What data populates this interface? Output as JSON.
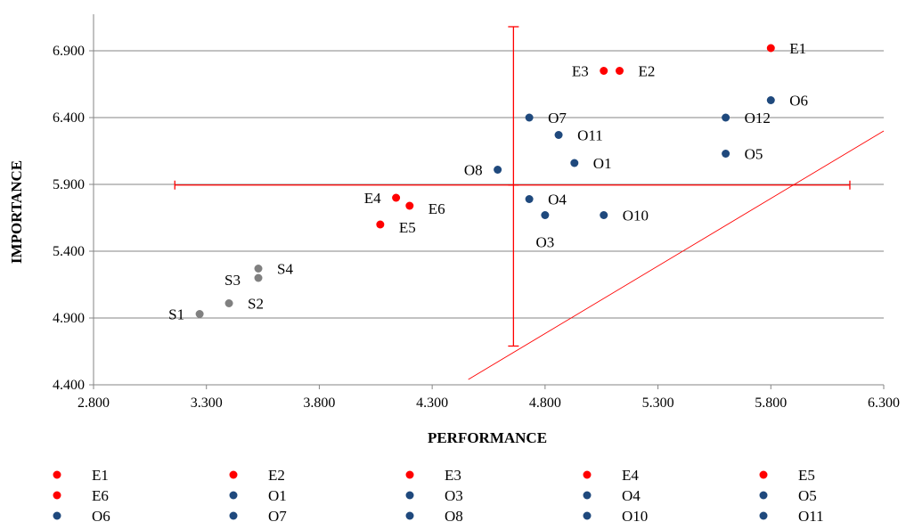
{
  "chart_data": {
    "type": "scatter",
    "title": "",
    "xlabel": "PERFORMANCE",
    "ylabel": "IMPORTANCE",
    "xlim": [
      2.8,
      6.3
    ],
    "ylim": [
      4.4,
      7.2
    ],
    "xticks": [
      "2.800",
      "3.300",
      "3.800",
      "4.300",
      "4.800",
      "5.300",
      "5.800",
      "6.300"
    ],
    "yticks": [
      "4.400",
      "4.900",
      "5.400",
      "5.900",
      "6.400",
      "6.900"
    ],
    "grid": "horizontal",
    "legend_position": "bottom",
    "colors": {
      "E": "#ff0000",
      "O": "#1f497d",
      "S": "#808080",
      "lines": "#ff0000",
      "grid": "#868686"
    },
    "points": [
      {
        "name": "E1",
        "group": "E",
        "x": 5.8,
        "y": 6.92,
        "label_pos": "right"
      },
      {
        "name": "E2",
        "group": "E",
        "x": 5.13,
        "y": 6.75,
        "label_pos": "right"
      },
      {
        "name": "E3",
        "group": "E",
        "x": 5.06,
        "y": 6.75,
        "label_pos": "left"
      },
      {
        "name": "E4",
        "group": "E",
        "x": 4.14,
        "y": 5.8,
        "label_pos": "left"
      },
      {
        "name": "E5",
        "group": "E",
        "x": 4.07,
        "y": 5.6,
        "label_pos": "below-right"
      },
      {
        "name": "E6",
        "group": "E",
        "x": 4.2,
        "y": 5.74,
        "label_pos": "below-right"
      },
      {
        "name": "O1",
        "group": "O",
        "x": 4.93,
        "y": 6.06,
        "label_pos": "right"
      },
      {
        "name": "O3",
        "group": "O",
        "x": 4.8,
        "y": 5.67,
        "label_pos": "below"
      },
      {
        "name": "O4",
        "group": "O",
        "x": 4.73,
        "y": 5.79,
        "label_pos": "right"
      },
      {
        "name": "O5",
        "group": "O",
        "x": 5.6,
        "y": 6.13,
        "label_pos": "right"
      },
      {
        "name": "O6",
        "group": "O",
        "x": 5.8,
        "y": 6.53,
        "label_pos": "right"
      },
      {
        "name": "O7",
        "group": "O",
        "x": 4.73,
        "y": 6.4,
        "label_pos": "right"
      },
      {
        "name": "O8",
        "group": "O",
        "x": 4.59,
        "y": 6.01,
        "label_pos": "left"
      },
      {
        "name": "O10",
        "group": "O",
        "x": 5.06,
        "y": 5.67,
        "label_pos": "right"
      },
      {
        "name": "O11",
        "group": "O",
        "x": 4.86,
        "y": 6.27,
        "label_pos": "right"
      },
      {
        "name": "O12",
        "group": "O",
        "x": 5.6,
        "y": 6.4,
        "label_pos": "right"
      },
      {
        "name": "S1",
        "group": "S",
        "x": 3.27,
        "y": 4.93,
        "label_pos": "left"
      },
      {
        "name": "S2",
        "group": "S",
        "x": 3.4,
        "y": 5.01,
        "label_pos": "right"
      },
      {
        "name": "S3",
        "group": "S",
        "x": 3.53,
        "y": 5.2,
        "label_pos": "above-left"
      },
      {
        "name": "S4",
        "group": "S",
        "x": 3.53,
        "y": 5.27,
        "label_pos": "right"
      }
    ],
    "crosshair": {
      "x": 4.66,
      "y": 5.895,
      "x_range": [
        3.16,
        6.15
      ],
      "y_range": [
        4.69,
        7.08
      ]
    },
    "diagonal_line": {
      "from": [
        4.46,
        4.44
      ],
      "to": [
        6.3,
        6.3
      ]
    },
    "legend": [
      "E1",
      "E2",
      "E3",
      "E4",
      "E5",
      "E6",
      "O1",
      "O3",
      "O4",
      "O5",
      "O6",
      "O7",
      "O8",
      "O10",
      "O11"
    ]
  }
}
